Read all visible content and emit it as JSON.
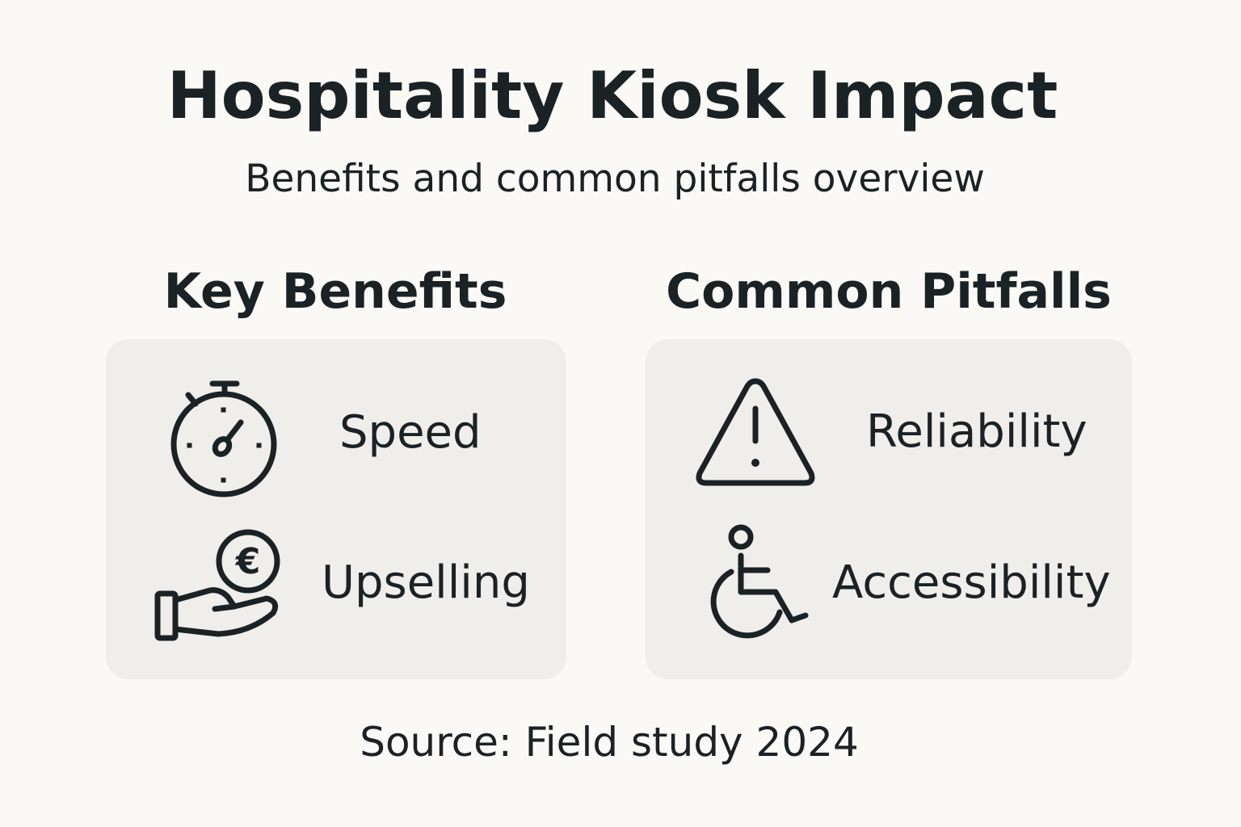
{
  "header": {
    "title": "Hospitality Kiosk Impact",
    "subtitle": "Benefits and common pitfalls overview"
  },
  "benefits": {
    "heading": "Key Benefits",
    "items": [
      {
        "label": "Speed",
        "icon": "stopwatch-icon"
      },
      {
        "label": "Upselling",
        "icon": "hand-coin-icon"
      }
    ]
  },
  "pitfalls": {
    "heading": "Common Pitfalls",
    "items": [
      {
        "label": "Reliability",
        "icon": "warning-icon"
      },
      {
        "label": "Accessibility",
        "icon": "wheelchair-icon"
      }
    ]
  },
  "footer": {
    "source": "Source: Field study 2024"
  },
  "colors": {
    "background": "#faf9f5",
    "panel": "#efeeea",
    "text": "#1b2226"
  }
}
